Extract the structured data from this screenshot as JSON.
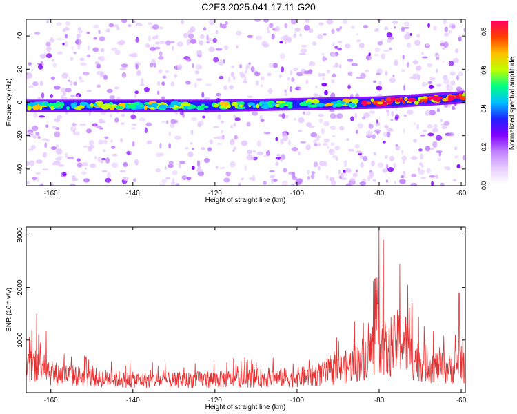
{
  "title": "C2E3.2025.041.17.11.G20",
  "colors": {
    "snr_line": "#e83030",
    "colormap": [
      "#ffffff",
      "#e6ccff",
      "#c080ff",
      "#8000ff",
      "#2020ff",
      "#00c0ff",
      "#00ff80",
      "#c0ff00",
      "#ffc000",
      "#ff4000",
      "#ff0060"
    ]
  },
  "chart_data": [
    {
      "id": "spectrogram",
      "type": "heatmap",
      "xlabel": "Height of straight line (km)",
      "ylabel": "Frequency (Hz)",
      "xlim": [
        -166,
        -59
      ],
      "ylim": [
        -50,
        50
      ],
      "x_ticks": [
        -160,
        -140,
        -120,
        -100,
        -80,
        -60
      ],
      "x_tick_labels": [
        "-160",
        "-140",
        "-120",
        "-100",
        "-80",
        "-60"
      ],
      "y_ticks": [
        -40,
        -20,
        0,
        20,
        40
      ],
      "y_tick_labels": [
        "-40",
        "-20",
        "0",
        "20",
        "40"
      ],
      "ridge_frequency": {
        "x": [
          -166,
          -140,
          -120,
          -100,
          -80,
          -60
        ],
        "y": [
          -2,
          -2,
          -2,
          -1,
          0,
          3
        ]
      },
      "colorbar": {
        "label": "Normalized spectral amplitude",
        "range": [
          0,
          0.85
        ],
        "ticks": [
          0.0,
          0.2,
          0.4,
          0.6,
          0.8
        ],
        "tick_labels": [
          "0.0",
          "0.2",
          "0.4",
          "0.6",
          "0.8"
        ]
      }
    },
    {
      "id": "snr",
      "type": "line",
      "xlabel": "Height of straight line (km)",
      "ylabel": "SNR (10 * v/v)",
      "xlim": [
        -166,
        -59
      ],
      "ylim": [
        0,
        3150
      ],
      "x_ticks": [
        -160,
        -140,
        -120,
        -100,
        -80,
        -60
      ],
      "x_tick_labels": [
        "-160",
        "-140",
        "-120",
        "-100",
        "-80",
        "-60"
      ],
      "y_ticks": [
        1000,
        2000,
        3000
      ],
      "y_tick_labels": [
        "1000",
        "2000",
        "3000"
      ],
      "envelope": {
        "x": [
          -166,
          -162,
          -160,
          -150,
          -140,
          -130,
          -120,
          -110,
          -100,
          -95,
          -90,
          -85,
          -82,
          -80,
          -78,
          -76,
          -74,
          -72,
          -70,
          -65,
          -62,
          -60,
          -59
        ],
        "y": [
          600,
          900,
          500,
          400,
          330,
          320,
          350,
          380,
          400,
          450,
          600,
          800,
          1100,
          1500,
          1000,
          1300,
          1400,
          900,
          800,
          650,
          600,
          900,
          500
        ]
      },
      "peaks": [
        {
          "x": -163.5,
          "y": 1500
        },
        {
          "x": -80.0,
          "y": 3150
        },
        {
          "x": -79.0,
          "y": 2900
        },
        {
          "x": -75.0,
          "y": 2450
        },
        {
          "x": -73.0,
          "y": 2050
        },
        {
          "x": -72.0,
          "y": 1700
        },
        {
          "x": -60.5,
          "y": 1900
        }
      ]
    }
  ]
}
